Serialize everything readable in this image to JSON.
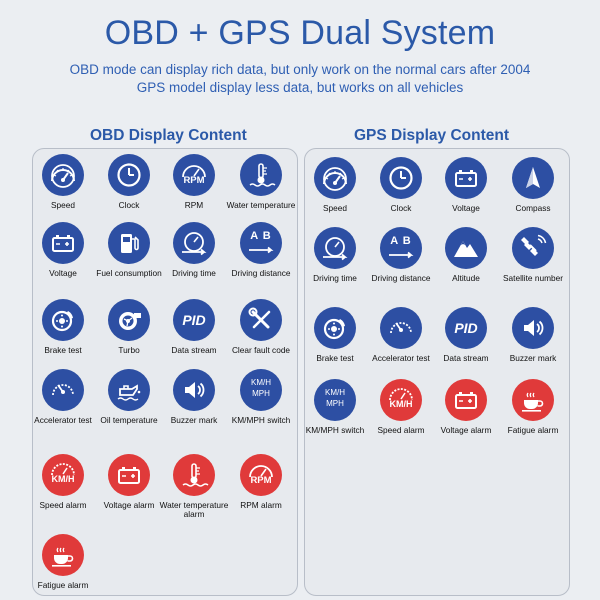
{
  "header": {
    "title": "OBD + GPS Dual System",
    "subtitle_line1": "OBD mode can display rich data, but only work on the normal cars after 2004",
    "subtitle_line2": "GPS model display less data, but works on all vehicles"
  },
  "obd": {
    "heading": "OBD Display Content",
    "items": [
      {
        "label": "Speed",
        "icon": "speedometer-icon",
        "color": "blue"
      },
      {
        "label": "Clock",
        "icon": "clock-icon",
        "color": "blue"
      },
      {
        "label": "RPM",
        "icon": "rpm-icon",
        "color": "blue",
        "text": "RPM"
      },
      {
        "label": "Water temperature",
        "icon": "water-temperature-icon",
        "color": "blue"
      },
      {
        "label": "Voltage",
        "icon": "battery-icon",
        "color": "blue"
      },
      {
        "label": "Fuel consumption",
        "icon": "fuel-pump-icon",
        "color": "blue"
      },
      {
        "label": "Driving time",
        "icon": "driving-time-icon",
        "color": "blue"
      },
      {
        "label": "Driving distance",
        "icon": "distance-ab-icon",
        "color": "blue",
        "text": "A B"
      },
      {
        "label": "Brake test",
        "icon": "brake-disc-icon",
        "color": "blue"
      },
      {
        "label": "Turbo",
        "icon": "turbo-icon",
        "color": "blue"
      },
      {
        "label": "Data stream",
        "icon": "pid-icon",
        "color": "blue",
        "text": "PID"
      },
      {
        "label": "Clear fault code",
        "icon": "wrench-screwdriver-icon",
        "color": "blue"
      },
      {
        "label": "Accelerator test",
        "icon": "accelerator-gauge-icon",
        "color": "blue"
      },
      {
        "label": "Oil temperature",
        "icon": "oil-can-icon",
        "color": "blue"
      },
      {
        "label": "Buzzer mark",
        "icon": "speaker-icon",
        "color": "blue"
      },
      {
        "label": "KM/MPH switch",
        "icon": "kmh-mph-icon",
        "color": "blue",
        "text": "KM/H",
        "text2": "MPH"
      },
      {
        "label": "Speed alarm",
        "icon": "speed-alarm-icon",
        "color": "red",
        "text": "KM/H"
      },
      {
        "label": "Voltage alarm",
        "icon": "battery-alarm-icon",
        "color": "red"
      },
      {
        "label": "Water temperature alarm",
        "icon": "water-temperature-alarm-icon",
        "color": "red"
      },
      {
        "label": "RPM alarm",
        "icon": "rpm-alarm-icon",
        "color": "red",
        "text": "RPM"
      },
      {
        "label": "Fatigue alarm",
        "icon": "coffee-cup-icon",
        "color": "red"
      }
    ]
  },
  "gps": {
    "heading": "GPS Display Content",
    "items": [
      {
        "label": "Speed",
        "icon": "speedometer-icon",
        "color": "blue"
      },
      {
        "label": "Clock",
        "icon": "clock-icon",
        "color": "blue"
      },
      {
        "label": "Voltage",
        "icon": "battery-icon",
        "color": "blue"
      },
      {
        "label": "Compass",
        "icon": "compass-icon",
        "color": "blue"
      },
      {
        "label": "Driving time",
        "icon": "driving-time-icon",
        "color": "blue"
      },
      {
        "label": "Driving distance",
        "icon": "distance-ab-icon",
        "color": "blue",
        "text": "A B"
      },
      {
        "label": "Altitude",
        "icon": "mountain-icon",
        "color": "blue"
      },
      {
        "label": "Satellite number",
        "icon": "satellite-icon",
        "color": "blue"
      },
      {
        "label": "Brake test",
        "icon": "brake-disc-icon",
        "color": "blue"
      },
      {
        "label": "Accelerator test",
        "icon": "accelerator-gauge-icon",
        "color": "blue"
      },
      {
        "label": "Data stream",
        "icon": "pid-icon",
        "color": "blue",
        "text": "PID"
      },
      {
        "label": "Buzzer mark",
        "icon": "speaker-icon",
        "color": "blue"
      },
      {
        "label": "KM/MPH switch",
        "icon": "kmh-mph-icon",
        "color": "blue",
        "text": "KM/H",
        "text2": "MPH"
      },
      {
        "label": "Speed alarm",
        "icon": "speed-alarm-icon",
        "color": "red",
        "text": "KM/H"
      },
      {
        "label": "Voltage alarm",
        "icon": "battery-alarm-icon",
        "color": "red"
      },
      {
        "label": "Fatigue alarm",
        "icon": "coffee-cup-icon",
        "color": "red"
      }
    ]
  },
  "colors": {
    "title": "#2b59a8",
    "icon_blue": "#2d4fa3",
    "icon_red": "#e03a3a"
  }
}
